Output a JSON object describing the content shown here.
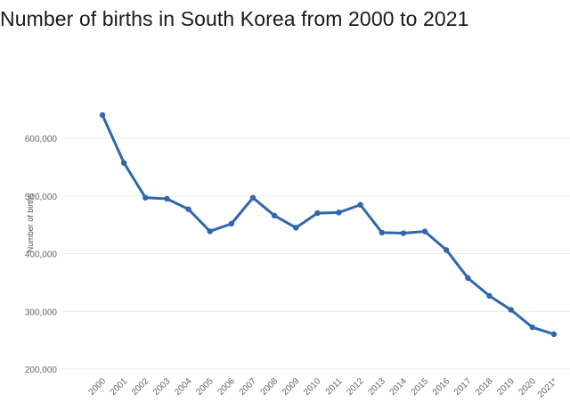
{
  "chart_data": {
    "type": "line",
    "title": "Number of births in South Korea from 2000 to 2021",
    "ylabel": "Number of births",
    "xlabel": "",
    "categories": [
      "2000",
      "2001",
      "2002",
      "2003",
      "2004",
      "2005",
      "2006",
      "2007",
      "2008",
      "2009",
      "2010",
      "2011",
      "2012",
      "2013",
      "2014",
      "2015",
      "2016",
      "2017",
      "2018",
      "2019",
      "2020",
      "2021*"
    ],
    "series": [
      {
        "values": [
          640089,
          557228,
          496911,
          495036,
          476958,
          438707,
          451759,
          496822,
          465892,
          444849,
          470171,
          471265,
          484550,
          436455,
          435435,
          438420,
          406243,
          357771,
          326822,
          302676,
          272337,
          260500
        ]
      }
    ],
    "yticks": [
      "200,000",
      "300,000",
      "400,000",
      "500,000",
      "600,000"
    ],
    "ytick_values": [
      200000,
      300000,
      400000,
      500000,
      600000
    ],
    "ylim": [
      200000,
      700000
    ],
    "grid": true,
    "line_color": "#2f66ad"
  }
}
